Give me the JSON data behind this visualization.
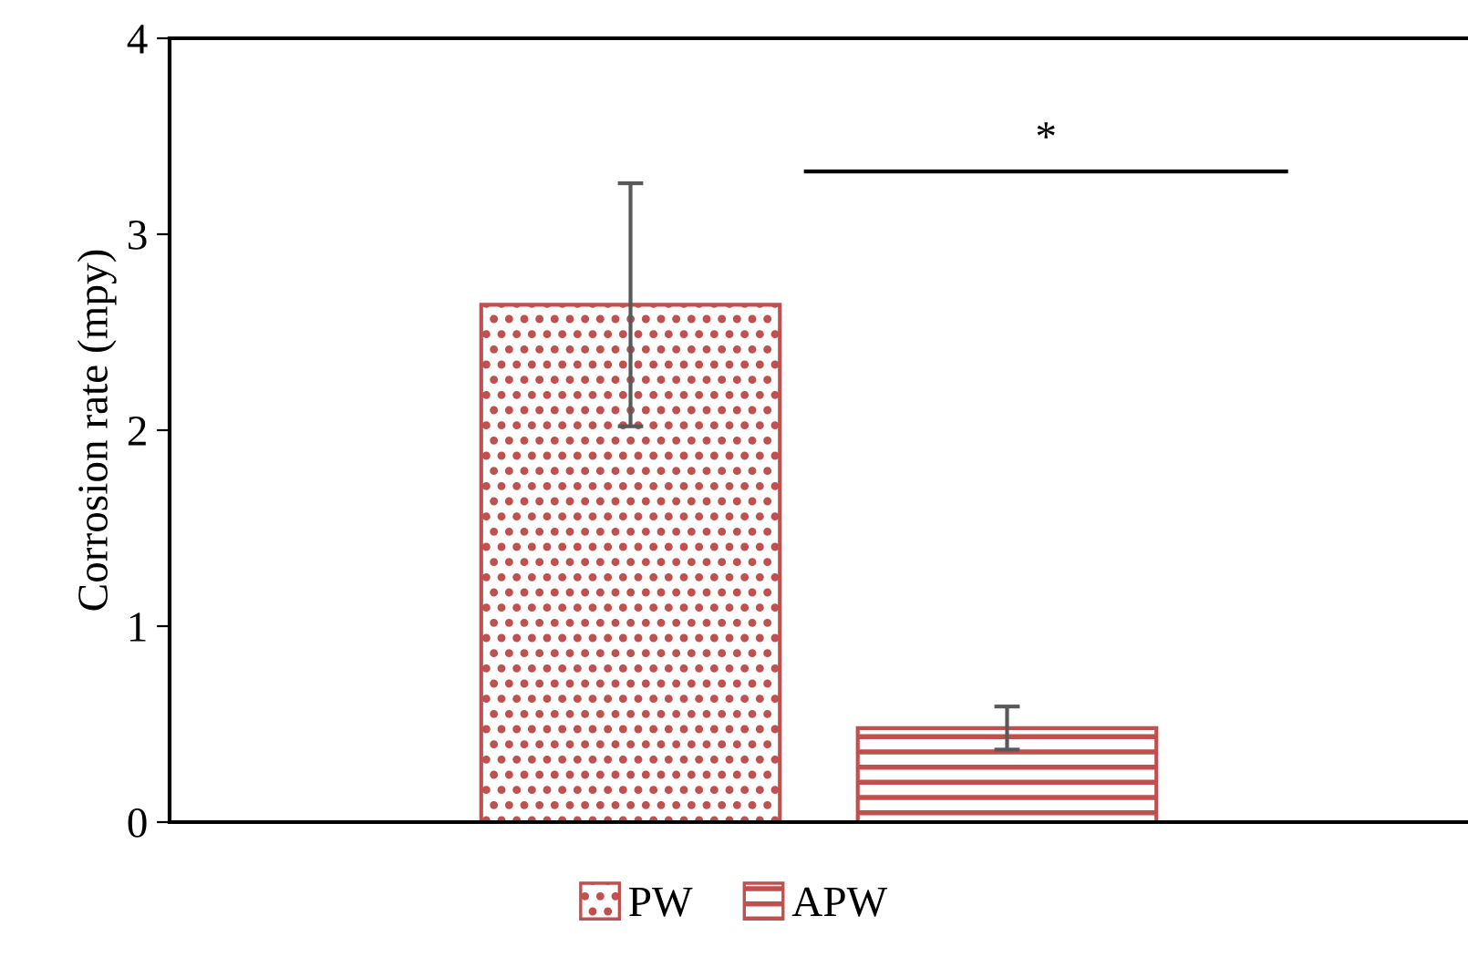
{
  "chart_data": {
    "type": "bar",
    "ylabel": "Corrosion rate (mpy)",
    "categories": [
      null
    ],
    "series": [
      {
        "name": "PW",
        "color": "#c0504d",
        "values": [
          2.64
        ],
        "errors": [
          0.62
        ]
      },
      {
        "name": "APW",
        "color": "#c0504d",
        "values": [
          0.48
        ],
        "errors": [
          0.11
        ]
      }
    ],
    "ylim": [
      0,
      4
    ],
    "yticks": [
      0,
      1,
      2,
      3,
      4
    ],
    "grid": false,
    "legend": "bottom",
    "annotations": [
      "*"
    ]
  }
}
